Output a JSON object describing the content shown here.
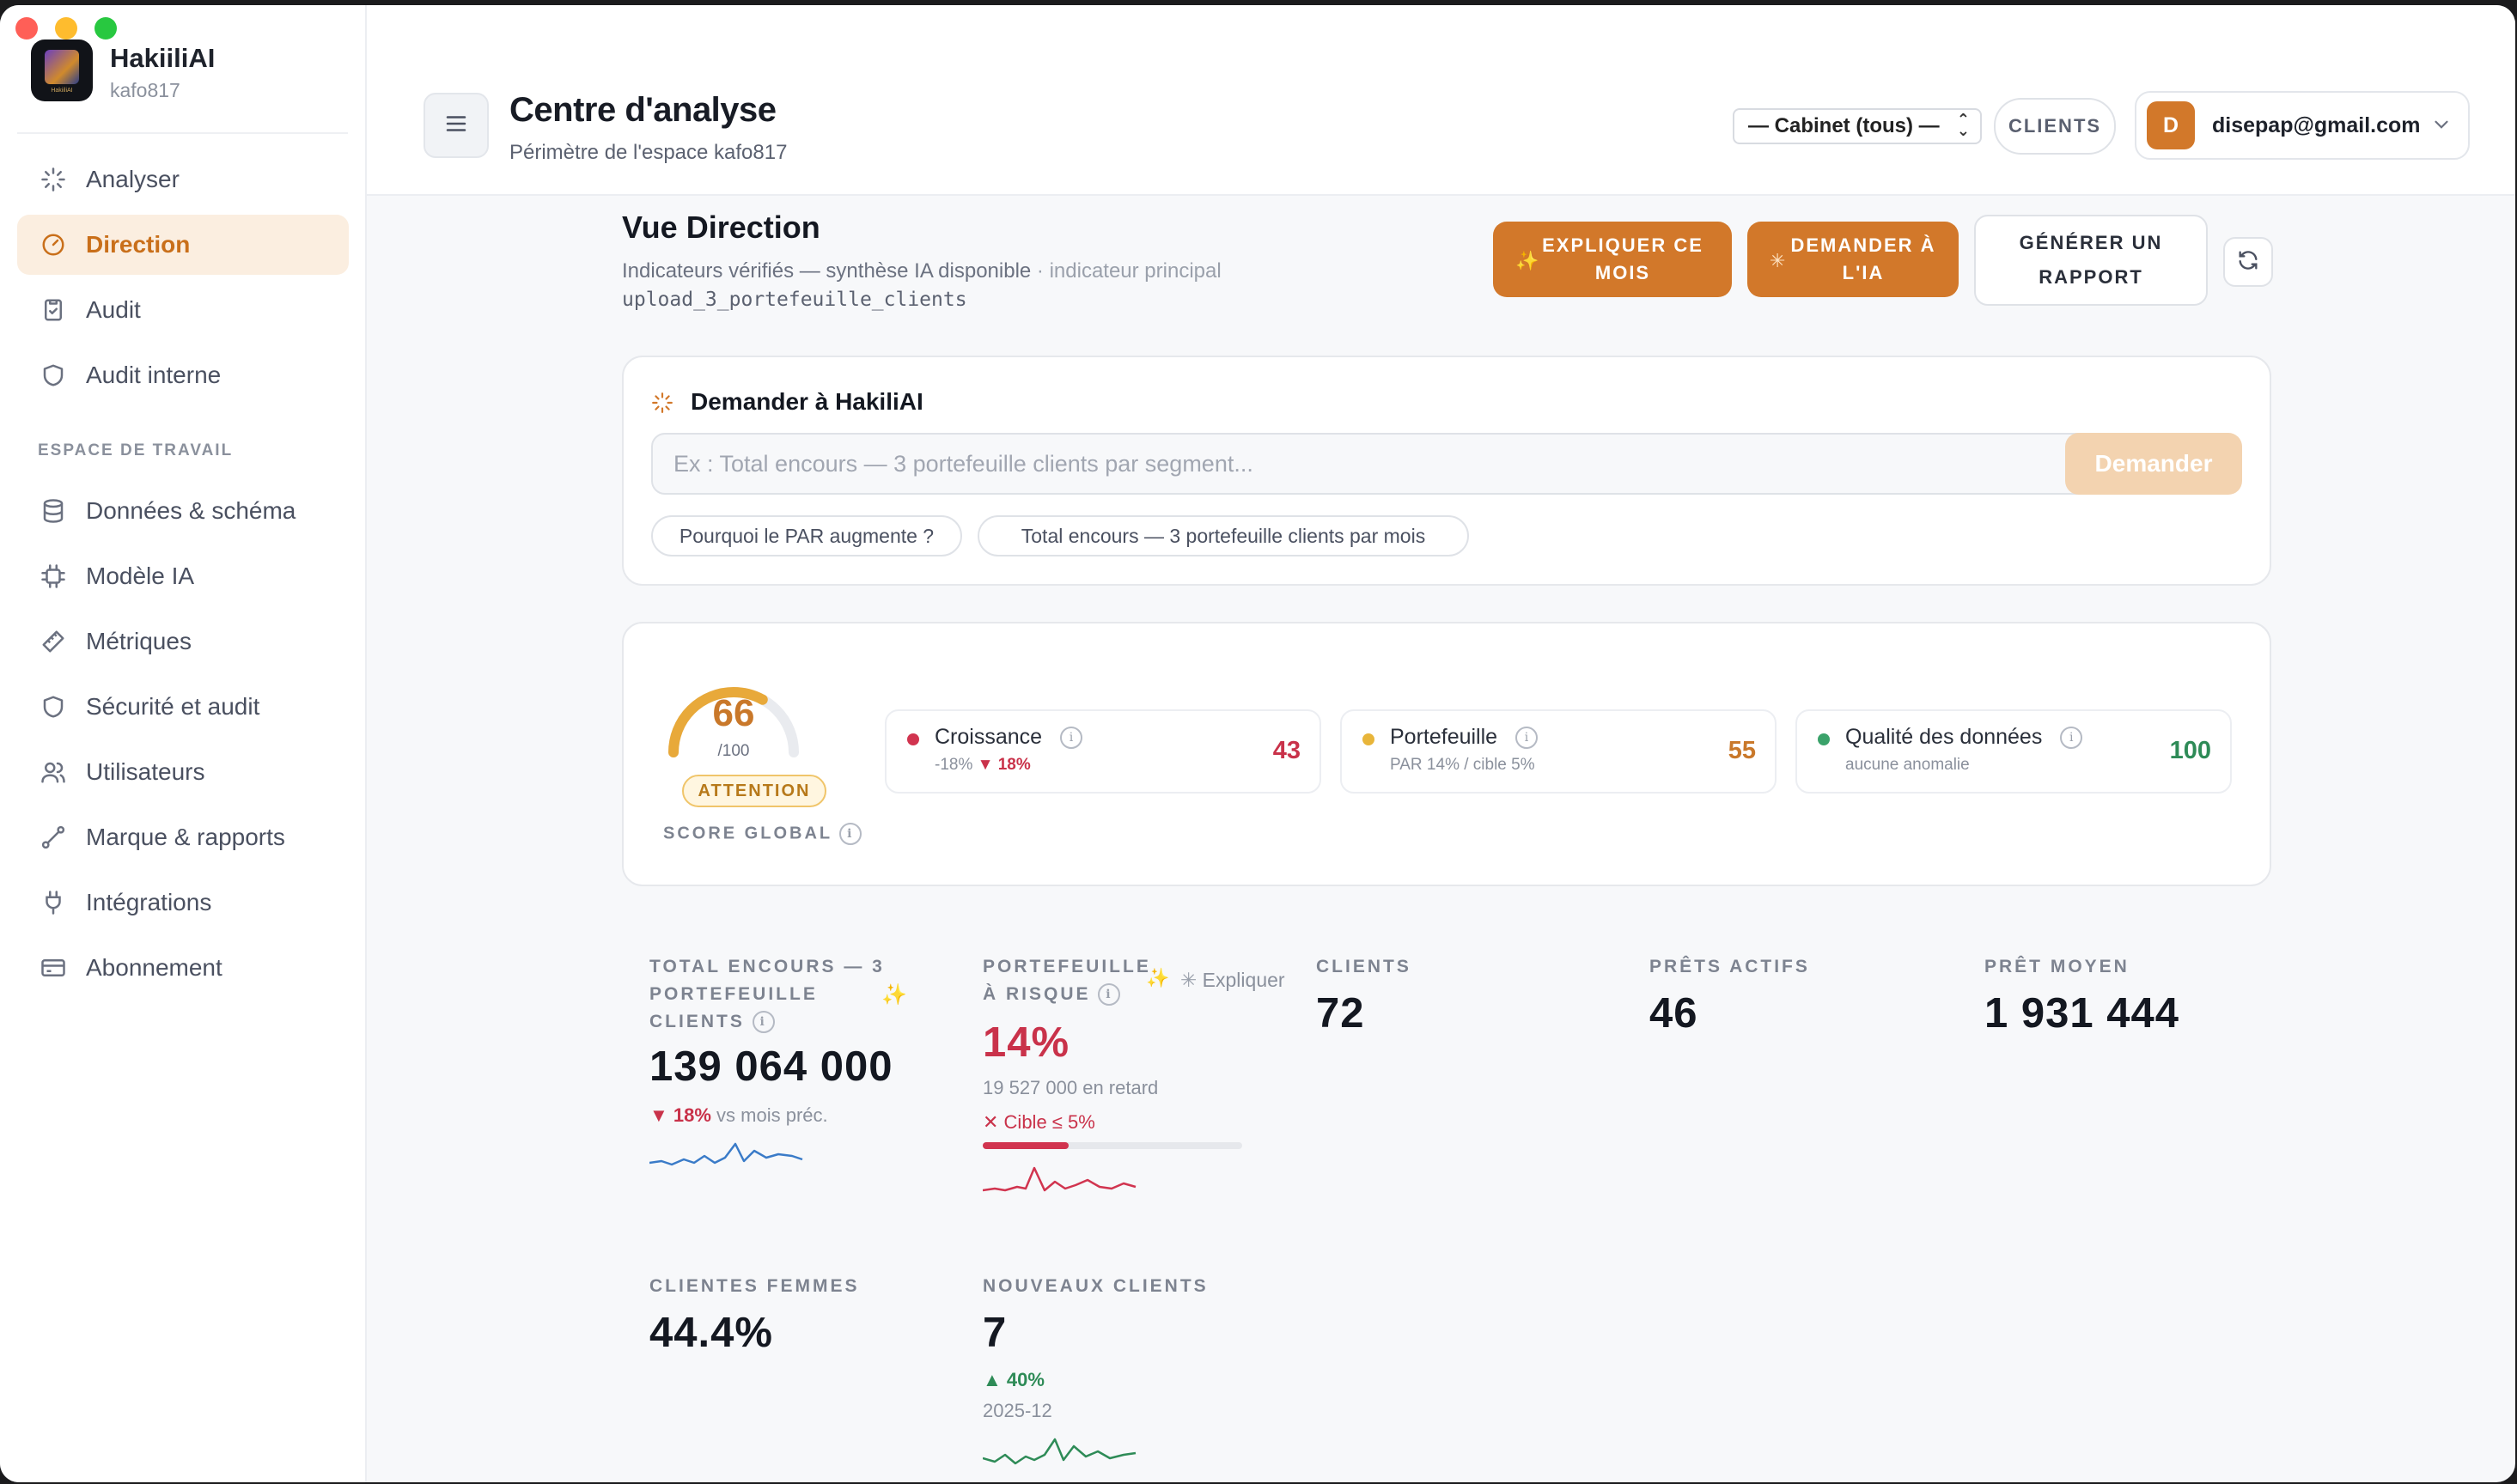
{
  "brand": {
    "name": "HakiiliAI",
    "workspace": "kafo817",
    "logo_caption": "HakiiliAI"
  },
  "sidebar": {
    "items": [
      {
        "label": "Analyser",
        "icon": "sparkle-icon"
      },
      {
        "label": "Direction",
        "icon": "gauge-icon",
        "active": true
      },
      {
        "label": "Audit",
        "icon": "clipboard-check-icon"
      },
      {
        "label": "Audit interne",
        "icon": "shield-icon"
      }
    ],
    "section_label": "ESPACE DE TRAVAIL",
    "workspace_items": [
      {
        "label": "Données & schéma",
        "icon": "database-icon"
      },
      {
        "label": "Modèle IA",
        "icon": "cpu-icon"
      },
      {
        "label": "Métriques",
        "icon": "ruler-icon"
      },
      {
        "label": "Sécurité et audit",
        "icon": "shield-icon"
      },
      {
        "label": "Utilisateurs",
        "icon": "users-icon"
      },
      {
        "label": "Marque & rapports",
        "icon": "palette-icon"
      },
      {
        "label": "Intégrations",
        "icon": "plug-icon"
      },
      {
        "label": "Abonnement",
        "icon": "credit-card-icon"
      }
    ]
  },
  "header": {
    "title": "Centre d'analyse",
    "subtitle": "Périmètre de l'espace kafo817",
    "cabinet_select": "— Cabinet (tous) —",
    "clients_button": "CLIENTS",
    "user": {
      "initial": "D",
      "email": "disepap@gmail.com"
    }
  },
  "view": {
    "title": "Vue Direction",
    "subtitle": "Indicateurs vérifiés — synthèse IA disponible",
    "subtitle_muted": " · indicateur principal",
    "code": "upload_3_portefeuille_clients",
    "actions": {
      "explain": [
        "EXPLIQUER CE",
        "MOIS"
      ],
      "ask_ai": [
        "DEMANDER À",
        "L'IA"
      ],
      "report": [
        "GÉNÉRER UN",
        "RAPPORT"
      ]
    }
  },
  "ask": {
    "title": "Demander à HakiliAI",
    "placeholder": "Ex : Total encours — 3 portefeuille clients par segment...",
    "button": "Demander",
    "chips": [
      "Pourquoi le PAR augmente ?",
      "Total encours — 3 portefeuille clients par mois"
    ]
  },
  "score": {
    "value": "66",
    "denominator": "/100",
    "fraction": 0.66,
    "status": "ATTENTION",
    "label": "SCORE GLOBAL",
    "subs": [
      {
        "name": "Croissance",
        "meta_prefix": "-18% ",
        "meta_delta": "▼ 18%",
        "value": "43",
        "color": "#d1344f"
      },
      {
        "name": "Portefeuille",
        "meta_prefix": "PAR 14% / cible 5%",
        "meta_delta": "",
        "value": "55",
        "color": "#e8a93a"
      },
      {
        "name": "Qualité des données",
        "meta_prefix": "aucune anomalie",
        "meta_delta": "",
        "value": "100",
        "color": "#3aa26a"
      }
    ]
  },
  "kpis": {
    "encours": {
      "label_lines": [
        "TOTAL ENCOURS — 3",
        "PORTEFEUILLE",
        "CLIENTS"
      ],
      "value": "139 064 000",
      "delta": "▼ 18%",
      "delta_suffix": " vs mois préc."
    },
    "par": {
      "label_lines": [
        "PORTEFEUILLE",
        "À RISQUE"
      ],
      "explain": "Expliquer",
      "value": "14%",
      "late": "19 527 000 en retard",
      "target": "✕ Cible ≤ 5%",
      "bar_fraction": 0.33
    },
    "clients": {
      "label": "CLIENTS",
      "value": "72"
    },
    "prets": {
      "label": "PRÊTS ACTIFS",
      "value": "46"
    },
    "pret_moyen": {
      "label": "PRÊT MOYEN",
      "value": "1 931 444"
    },
    "femmes": {
      "label": "CLIENTES FEMMES",
      "value": "44.4%"
    },
    "nouveaux": {
      "label": "NOUVEAUX CLIENTS",
      "value": "7",
      "delta": "▲ 40%",
      "period": "2025-12"
    }
  }
}
